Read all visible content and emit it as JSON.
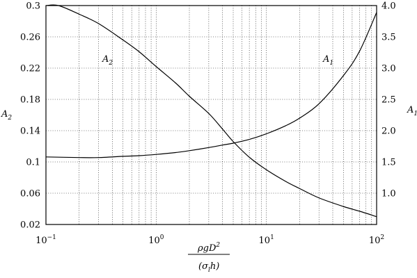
{
  "chart_data": {
    "type": "line",
    "xscale": "log",
    "grid": true,
    "xlim": [
      0.1,
      100
    ],
    "ylim_left": [
      0.02,
      0.3
    ],
    "ylim_right": [
      0.5,
      4.0
    ],
    "x_tick_labels": [
      {
        "base": "10",
        "exp": "−1",
        "value": 0.1
      },
      {
        "base": "10",
        "exp": "0",
        "value": 1
      },
      {
        "base": "10",
        "exp": "1",
        "value": 10
      },
      {
        "base": "10",
        "exp": "2",
        "value": 100
      }
    ],
    "y_left_ticks": [
      {
        "label": "0.3",
        "value": 0.3
      },
      {
        "label": "0.26",
        "value": 0.26
      },
      {
        "label": "0.22",
        "value": 0.22
      },
      {
        "label": "0.18",
        "value": 0.18
      },
      {
        "label": "0.14",
        "value": 0.14
      },
      {
        "label": "0.1",
        "value": 0.1
      },
      {
        "label": "0.06",
        "value": 0.06
      },
      {
        "label": "0.02",
        "value": 0.02
      }
    ],
    "y_right_ticks": [
      {
        "label": "4.0",
        "value": 4.0
      },
      {
        "label": "3.5",
        "value": 3.5
      },
      {
        "label": "3.0",
        "value": 3.0
      },
      {
        "label": "2.5",
        "value": 2.5
      },
      {
        "label": "2.0",
        "value": 2.0
      },
      {
        "label": "1.5",
        "value": 1.5
      },
      {
        "label": "1.0",
        "value": 1.0
      }
    ],
    "xlabel": {
      "numerator": "ρgD",
      "numerator_sup": "2",
      "denominator": "(σ",
      "denominator_sub": "l",
      "denominator_end": "h)"
    },
    "ylabel_left": {
      "base": "A",
      "sub": "2"
    },
    "ylabel_right": {
      "base": "A",
      "sub": "1"
    },
    "series": [
      {
        "name": "A2",
        "label": {
          "base": "A",
          "sub": "2"
        },
        "axis": "left",
        "x": [
          0.1,
          0.13,
          0.2,
          0.3,
          0.5,
          0.7,
          1,
          1.5,
          2,
          3,
          4,
          5,
          7,
          10,
          15,
          20,
          30,
          50,
          70,
          100
        ],
        "y": [
          0.3,
          0.3,
          0.289,
          0.277,
          0.256,
          0.241,
          0.222,
          0.201,
          0.184,
          0.162,
          0.142,
          0.126,
          0.106,
          0.09,
          0.075,
          0.066,
          0.054,
          0.043,
          0.037,
          0.03
        ]
      },
      {
        "name": "A1",
        "label": {
          "base": "A",
          "sub": "1"
        },
        "axis": "right",
        "x": [
          0.1,
          0.2,
          0.3,
          0.5,
          0.7,
          1,
          1.5,
          2,
          3,
          4,
          5,
          7,
          10,
          15,
          20,
          30,
          50,
          70,
          100
        ],
        "y": [
          1.58,
          1.57,
          1.57,
          1.59,
          1.6,
          1.62,
          1.65,
          1.68,
          1.73,
          1.77,
          1.8,
          1.86,
          1.95,
          2.08,
          2.2,
          2.43,
          2.88,
          3.27,
          3.89
        ]
      }
    ]
  }
}
